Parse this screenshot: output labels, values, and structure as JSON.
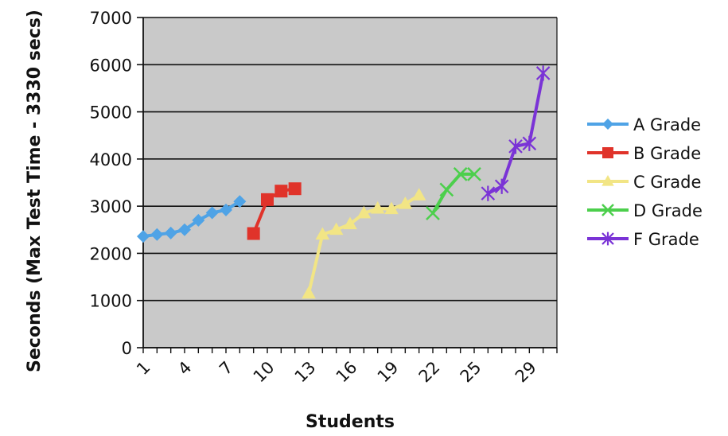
{
  "chart_data": {
    "type": "line",
    "title": "",
    "xlabel": "Students",
    "ylabel": "Seconds (Max Test Time - 3330 secs)",
    "ylim": [
      0,
      7000
    ],
    "yticks": [
      "0",
      "1000",
      "2000",
      "3000",
      "4000",
      "5000",
      "6000",
      "7000"
    ],
    "xlim": [
      1,
      31
    ],
    "xtick_labels": [
      {
        "x": 1,
        "label": "1"
      },
      {
        "x": 4,
        "label": "4"
      },
      {
        "x": 7,
        "label": "7"
      },
      {
        "x": 10,
        "label": "10"
      },
      {
        "x": 13,
        "label": "13"
      },
      {
        "x": 16,
        "label": "16"
      },
      {
        "x": 19,
        "label": "19"
      },
      {
        "x": 22,
        "label": "22"
      },
      {
        "x": 25,
        "label": "25"
      },
      {
        "x": 29,
        "label": "29"
      }
    ],
    "grid": true,
    "legend_position": "right",
    "series": [
      {
        "name": "A Grade",
        "color": "#4fa3e6",
        "marker": "diamond",
        "points": [
          [
            1,
            2360
          ],
          [
            2,
            2400
          ],
          [
            3,
            2430
          ],
          [
            4,
            2500
          ],
          [
            5,
            2700
          ],
          [
            6,
            2860
          ],
          [
            7,
            2920
          ],
          [
            8,
            3100
          ]
        ]
      },
      {
        "name": "B Grade",
        "color": "#e0332a",
        "marker": "square",
        "points": [
          [
            9,
            2420
          ],
          [
            10,
            3140
          ],
          [
            11,
            3320
          ],
          [
            12,
            3370
          ]
        ]
      },
      {
        "name": "C Grade",
        "color": "#f2e585",
        "marker": "triangle",
        "points": [
          [
            13,
            1150
          ],
          [
            14,
            2400
          ],
          [
            15,
            2500
          ],
          [
            16,
            2620
          ],
          [
            17,
            2850
          ],
          [
            18,
            2950
          ],
          [
            19,
            2940
          ],
          [
            20,
            3050
          ],
          [
            21,
            3230
          ]
        ]
      },
      {
        "name": "D Grade",
        "color": "#4ccf4c",
        "marker": "x",
        "points": [
          [
            22,
            2850
          ],
          [
            23,
            3350
          ],
          [
            24,
            3680
          ],
          [
            25,
            3680
          ]
        ]
      },
      {
        "name": "F Grade",
        "color": "#7a33d6",
        "marker": "star",
        "points": [
          [
            26,
            3270
          ],
          [
            27,
            3420
          ],
          [
            28,
            4270
          ],
          [
            29,
            4330
          ],
          [
            30,
            5820
          ]
        ]
      }
    ]
  }
}
